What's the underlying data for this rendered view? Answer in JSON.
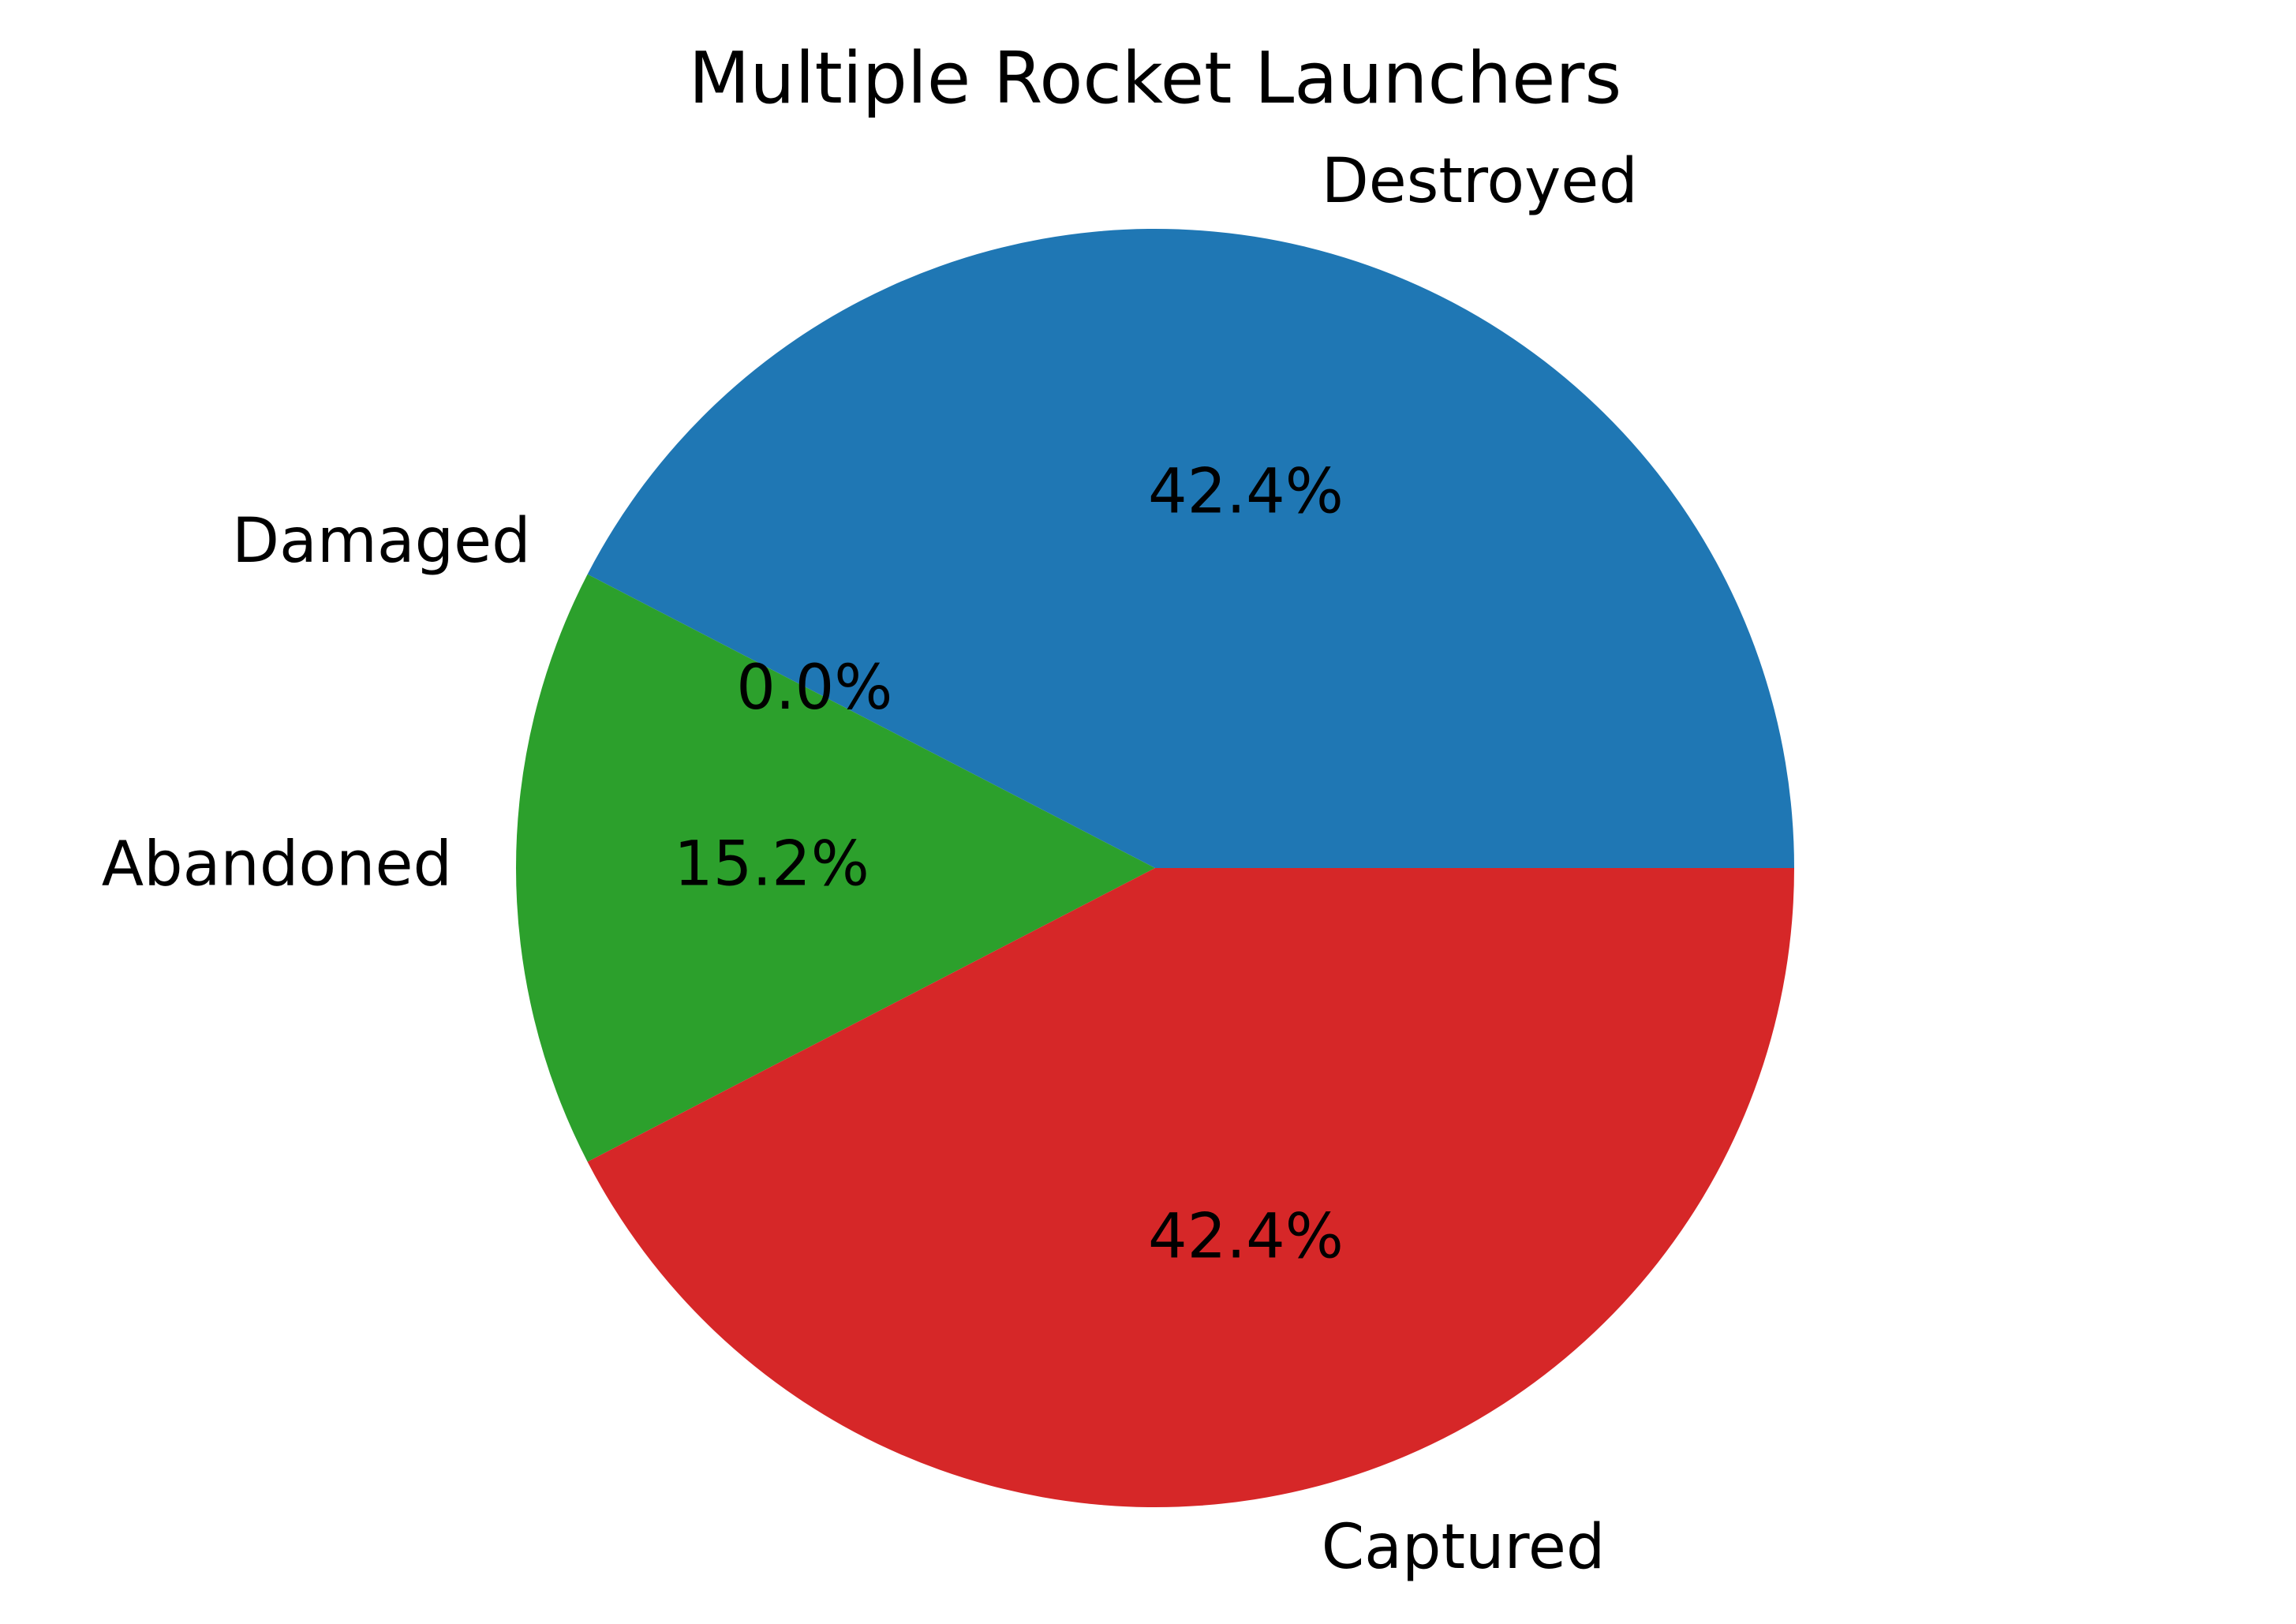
{
  "chart_data": {
    "type": "pie",
    "title": "Multiple Rocket Launchers",
    "labels": [
      "Destroyed",
      "Damaged",
      "Abandoned",
      "Captured"
    ],
    "values": [
      42.4,
      0.0,
      15.2,
      42.4
    ],
    "percent_labels": [
      "42.4%",
      "0.0%",
      "15.2%",
      "42.4%"
    ],
    "colors": [
      "#1f77b4",
      "#ff7f0e",
      "#2ca02c",
      "#d62728"
    ],
    "start_angle_deg": 0,
    "direction": "counterclockwise"
  }
}
